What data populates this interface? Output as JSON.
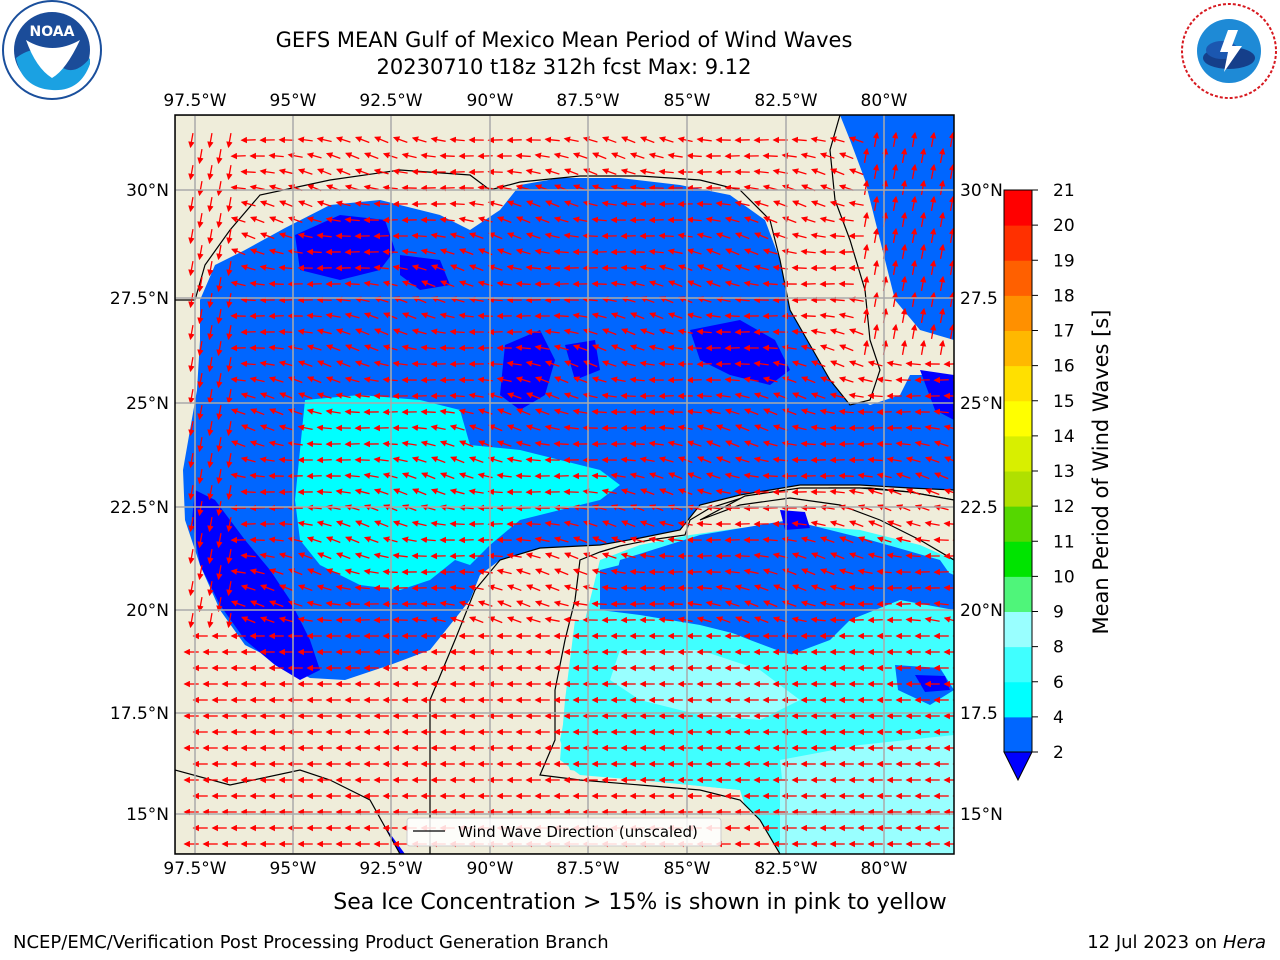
{
  "title": {
    "line1": "GEFS MEAN Gulf of Mexico Mean Period of Wind Waves",
    "line2": "20230710 t18z 312h fcst   Max: 9.12"
  },
  "axes": {
    "lon_labels": [
      "97.5°W",
      "95°W",
      "92.5°W",
      "90°W",
      "87.5°W",
      "85°W",
      "82.5°W",
      "80°W"
    ],
    "lat_labels_left": [
      "30°N",
      "27.5°N",
      "25°N",
      "22.5°N",
      "20°N",
      "17.5°N",
      "15°N"
    ],
    "lat_labels_right": [
      "30°N",
      "27.5",
      "25°N",
      "22.5",
      "20°N",
      "17.5",
      "15°N"
    ]
  },
  "legend": {
    "label": "Wind Wave Direction (unscaled)"
  },
  "colorbar": {
    "label": "Mean Period of Wind Waves [s]",
    "ticks": [
      "2",
      "4",
      "6",
      "8",
      "9",
      "10",
      "11",
      "12",
      "13",
      "14",
      "15",
      "16",
      "17",
      "18",
      "19",
      "20",
      "21"
    ],
    "colors": [
      "#0000ff",
      "#0066ff",
      "#00ffff",
      "#40ffff",
      "#99ffff",
      "#4ff57a",
      "#00e400",
      "#55d700",
      "#b0e000",
      "#d8ef00",
      "#ffff00",
      "#ffe000",
      "#ffb800",
      "#ff9000",
      "#ff6000",
      "#ff3000",
      "#ff0000"
    ]
  },
  "note": "Sea Ice Concentration > 15% is shown in pink to yellow",
  "footer": {
    "left": "NCEP/EMC/Verification Post Processing Product Generation Branch",
    "date": "12 Jul 2023 on ",
    "host": "Hera"
  },
  "logos": {
    "noaa": "NOAA",
    "noaa_ring": "NATIONAL OCEANIC AND ATMOSPHERIC ADMINISTRATION · U.S. DEPARTMENT OF COMMERCE",
    "nws_ring": "NATIONAL WEATHER SERVICE"
  }
}
